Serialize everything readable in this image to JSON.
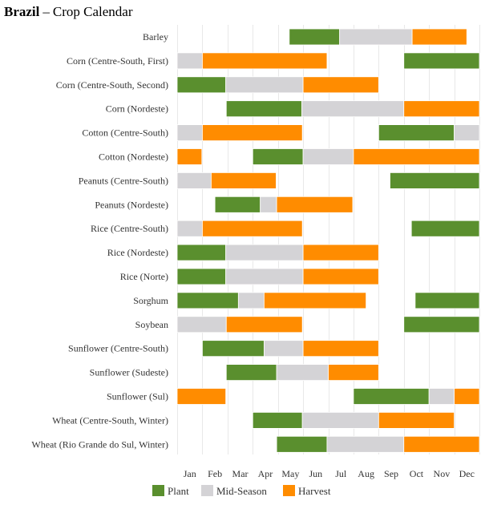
{
  "title": {
    "country": "Brazil",
    "separator": "–",
    "subtitle": "Crop Calendar"
  },
  "chart_data": {
    "type": "bar",
    "subtype": "gantt-calendar",
    "title": "Brazil – Crop Calendar",
    "months": [
      "Jan",
      "Feb",
      "Mar",
      "Apr",
      "May",
      "Jun",
      "Jul",
      "Aug",
      "Sep",
      "Oct",
      "Nov",
      "Dec"
    ],
    "x_range": [
      0,
      12
    ],
    "stages": [
      {
        "name": "Plant",
        "color": "#5a8f2e"
      },
      {
        "name": "Mid-Season",
        "color": "#d4d3d6"
      },
      {
        "name": "Harvest",
        "color": "#ff8c00"
      }
    ],
    "legend_position": "bottom",
    "crops": [
      {
        "name": "Barley",
        "segments": [
          {
            "stage": "Plant",
            "start": 4.45,
            "end": 6.45
          },
          {
            "stage": "Mid-Season",
            "start": 6.45,
            "end": 9.33
          },
          {
            "stage": "Harvest",
            "start": 9.33,
            "end": 11.5
          }
        ]
      },
      {
        "name": "Corn (Centre-South, First)",
        "segments": [
          {
            "stage": "Mid-Season",
            "start": 0,
            "end": 1.0
          },
          {
            "stage": "Harvest",
            "start": 1.0,
            "end": 5.95
          },
          {
            "stage": "Plant",
            "start": 9.0,
            "end": 12
          }
        ]
      },
      {
        "name": "Corn (Centre-South, Second)",
        "segments": [
          {
            "stage": "Plant",
            "start": 0,
            "end": 1.93
          },
          {
            "stage": "Mid-Season",
            "start": 1.93,
            "end": 5.0
          },
          {
            "stage": "Harvest",
            "start": 5.0,
            "end": 8.0
          }
        ]
      },
      {
        "name": "Corn (Nordeste)",
        "segments": [
          {
            "stage": "Plant",
            "start": 1.95,
            "end": 4.95
          },
          {
            "stage": "Mid-Season",
            "start": 4.95,
            "end": 9.0
          },
          {
            "stage": "Harvest",
            "start": 9.0,
            "end": 12
          }
        ]
      },
      {
        "name": "Cotton (Centre-South)",
        "segments": [
          {
            "stage": "Mid-Season",
            "start": 0,
            "end": 1.0
          },
          {
            "stage": "Harvest",
            "start": 1.0,
            "end": 4.97
          },
          {
            "stage": "Plant",
            "start": 8.0,
            "end": 11.0
          },
          {
            "stage": "Mid-Season",
            "start": 11.0,
            "end": 12
          }
        ]
      },
      {
        "name": "Cotton (Nordeste)",
        "segments": [
          {
            "stage": "Harvest",
            "start": 0,
            "end": 0.98
          },
          {
            "stage": "Plant",
            "start": 3.0,
            "end": 5.0
          },
          {
            "stage": "Mid-Season",
            "start": 5.0,
            "end": 7.0
          },
          {
            "stage": "Harvest",
            "start": 7.0,
            "end": 12
          }
        ]
      },
      {
        "name": "Peanuts (Centre-South)",
        "segments": [
          {
            "stage": "Mid-Season",
            "start": 0,
            "end": 1.35
          },
          {
            "stage": "Harvest",
            "start": 1.35,
            "end": 3.93
          },
          {
            "stage": "Plant",
            "start": 8.45,
            "end": 12
          }
        ]
      },
      {
        "name": "Peanuts (Nordeste)",
        "segments": [
          {
            "stage": "Plant",
            "start": 1.5,
            "end": 3.3
          },
          {
            "stage": "Mid-Season",
            "start": 3.3,
            "end": 3.95
          },
          {
            "stage": "Harvest",
            "start": 3.95,
            "end": 6.97
          }
        ]
      },
      {
        "name": "Rice (Centre-South)",
        "segments": [
          {
            "stage": "Mid-Season",
            "start": 0,
            "end": 1.0
          },
          {
            "stage": "Harvest",
            "start": 1.0,
            "end": 4.97
          },
          {
            "stage": "Plant",
            "start": 9.3,
            "end": 12
          }
        ]
      },
      {
        "name": "Rice (Nordeste)",
        "segments": [
          {
            "stage": "Plant",
            "start": 0,
            "end": 1.93
          },
          {
            "stage": "Mid-Season",
            "start": 1.93,
            "end": 5.0
          },
          {
            "stage": "Harvest",
            "start": 5.0,
            "end": 8.0
          }
        ]
      },
      {
        "name": "Rice (Norte)",
        "segments": [
          {
            "stage": "Plant",
            "start": 0,
            "end": 1.93
          },
          {
            "stage": "Mid-Season",
            "start": 1.93,
            "end": 5.0
          },
          {
            "stage": "Harvest",
            "start": 5.0,
            "end": 8.0
          }
        ]
      },
      {
        "name": "Sorghum",
        "segments": [
          {
            "stage": "Plant",
            "start": 0,
            "end": 2.43
          },
          {
            "stage": "Mid-Season",
            "start": 2.43,
            "end": 3.45
          },
          {
            "stage": "Harvest",
            "start": 3.45,
            "end": 7.5
          },
          {
            "stage": "Plant",
            "start": 9.45,
            "end": 12
          }
        ]
      },
      {
        "name": "Soybean",
        "segments": [
          {
            "stage": "Mid-Season",
            "start": 0,
            "end": 1.95
          },
          {
            "stage": "Harvest",
            "start": 1.95,
            "end": 4.97
          },
          {
            "stage": "Plant",
            "start": 9.0,
            "end": 12
          }
        ]
      },
      {
        "name": "Sunflower (Centre-South)",
        "segments": [
          {
            "stage": "Plant",
            "start": 1.0,
            "end": 3.45
          },
          {
            "stage": "Mid-Season",
            "start": 3.45,
            "end": 5.0
          },
          {
            "stage": "Harvest",
            "start": 5.0,
            "end": 8.0
          }
        ]
      },
      {
        "name": "Sunflower (Sudeste)",
        "segments": [
          {
            "stage": "Plant",
            "start": 1.95,
            "end": 3.95
          },
          {
            "stage": "Mid-Season",
            "start": 3.95,
            "end": 6.0
          },
          {
            "stage": "Harvest",
            "start": 6.0,
            "end": 8.0
          }
        ]
      },
      {
        "name": "Sunflower (Sul)",
        "segments": [
          {
            "stage": "Harvest",
            "start": 0,
            "end": 1.93
          },
          {
            "stage": "Plant",
            "start": 7.0,
            "end": 10.0
          },
          {
            "stage": "Mid-Season",
            "start": 10.0,
            "end": 11.0
          },
          {
            "stage": "Harvest",
            "start": 11.0,
            "end": 12
          }
        ]
      },
      {
        "name": "Wheat (Centre-South, Winter)",
        "segments": [
          {
            "stage": "Plant",
            "start": 3.0,
            "end": 4.97
          },
          {
            "stage": "Mid-Season",
            "start": 4.97,
            "end": 8.0
          },
          {
            "stage": "Harvest",
            "start": 8.0,
            "end": 11.0
          }
        ]
      },
      {
        "name": "Wheat (Rio Grande do Sul, Winter)",
        "segments": [
          {
            "stage": "Plant",
            "start": 3.95,
            "end": 5.95
          },
          {
            "stage": "Mid-Season",
            "start": 5.95,
            "end": 9.0
          },
          {
            "stage": "Harvest",
            "start": 9.0,
            "end": 12
          }
        ]
      }
    ]
  }
}
